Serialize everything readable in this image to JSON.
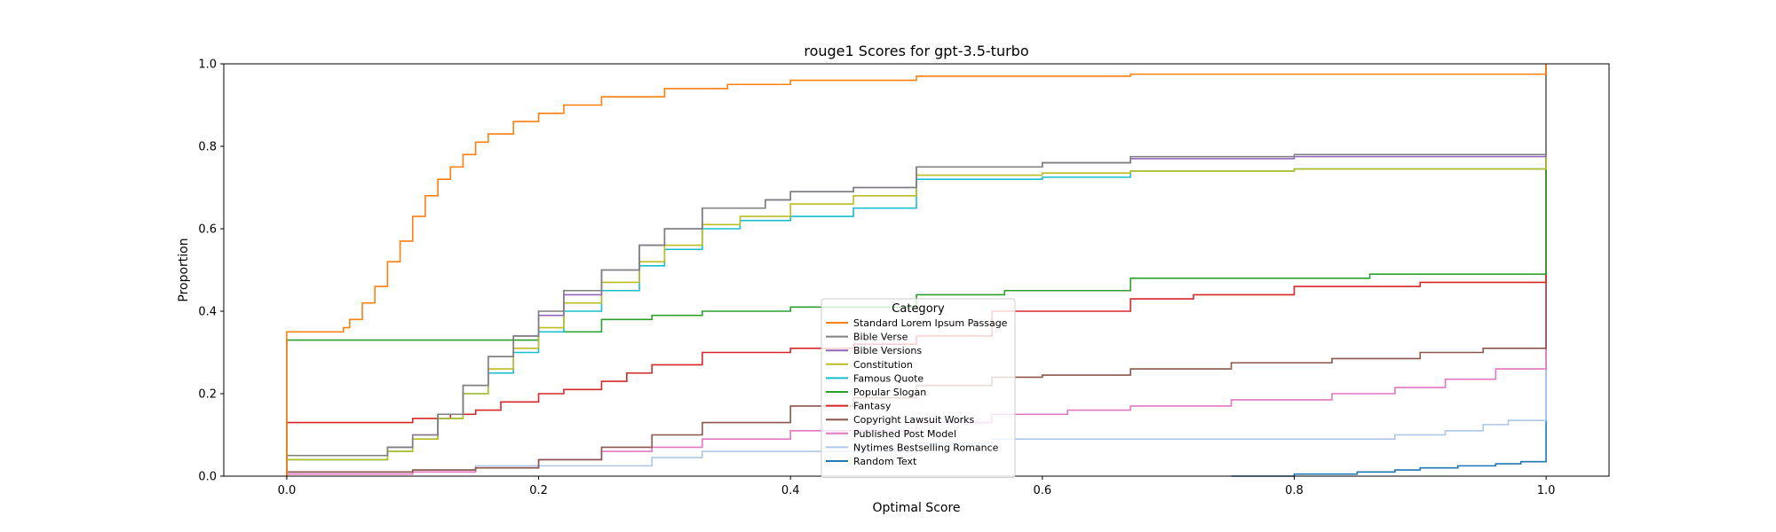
{
  "chart_data": {
    "type": "line",
    "subtype": "step-ecdf",
    "title": "rouge1 Scores for gpt-3.5-turbo",
    "xlabel": "Optimal Score",
    "ylabel": "Proportion",
    "xlim": [
      -0.05,
      1.05
    ],
    "ylim": [
      0,
      1
    ],
    "xticks": [
      0.0,
      0.2,
      0.4,
      0.6,
      0.8,
      1.0
    ],
    "xtick_labels": [
      "0.0",
      "0.2",
      "0.4",
      "0.6",
      "0.8",
      "1.0"
    ],
    "yticks": [
      0.0,
      0.2,
      0.4,
      0.6,
      0.8,
      1.0
    ],
    "ytick_labels": [
      "0.0",
      "0.2",
      "0.4",
      "0.6",
      "0.8",
      "1.0"
    ],
    "grid": false,
    "legend_title": "Category",
    "legend_location": "lower-center",
    "series": [
      {
        "name": "Standard Lorem Ipsum Passage",
        "color": "#ff7f0e",
        "points": [
          [
            0,
            0
          ],
          [
            0,
            0.35
          ],
          [
            0.04,
            0.35
          ],
          [
            0.045,
            0.36
          ],
          [
            0.05,
            0.38
          ],
          [
            0.06,
            0.42
          ],
          [
            0.07,
            0.46
          ],
          [
            0.08,
            0.52
          ],
          [
            0.09,
            0.57
          ],
          [
            0.1,
            0.63
          ],
          [
            0.11,
            0.68
          ],
          [
            0.12,
            0.72
          ],
          [
            0.13,
            0.75
          ],
          [
            0.14,
            0.78
          ],
          [
            0.15,
            0.81
          ],
          [
            0.16,
            0.83
          ],
          [
            0.18,
            0.86
          ],
          [
            0.2,
            0.88
          ],
          [
            0.22,
            0.9
          ],
          [
            0.25,
            0.92
          ],
          [
            0.3,
            0.94
          ],
          [
            0.35,
            0.95
          ],
          [
            0.4,
            0.96
          ],
          [
            0.5,
            0.97
          ],
          [
            0.67,
            0.975
          ],
          [
            1.0,
            0.975
          ],
          [
            1.0,
            1.0
          ]
        ]
      },
      {
        "name": "Bible Verse",
        "color": "#7f7f7f",
        "points": [
          [
            0,
            0
          ],
          [
            0,
            0.05
          ],
          [
            0.05,
            0.05
          ],
          [
            0.08,
            0.07
          ],
          [
            0.1,
            0.1
          ],
          [
            0.12,
            0.15
          ],
          [
            0.14,
            0.22
          ],
          [
            0.16,
            0.29
          ],
          [
            0.18,
            0.34
          ],
          [
            0.2,
            0.4
          ],
          [
            0.22,
            0.45
          ],
          [
            0.25,
            0.5
          ],
          [
            0.28,
            0.56
          ],
          [
            0.3,
            0.6
          ],
          [
            0.33,
            0.65
          ],
          [
            0.38,
            0.67
          ],
          [
            0.4,
            0.69
          ],
          [
            0.45,
            0.7
          ],
          [
            0.5,
            0.71
          ],
          [
            0.5,
            0.75
          ],
          [
            0.6,
            0.76
          ],
          [
            0.67,
            0.775
          ],
          [
            0.8,
            0.78
          ],
          [
            1.0,
            0.78
          ],
          [
            1.0,
            1.0
          ]
        ]
      },
      {
        "name": "Bible Versions",
        "color": "#9467bd",
        "points": [
          [
            0,
            0
          ],
          [
            0,
            0.05
          ],
          [
            0.05,
            0.05
          ],
          [
            0.08,
            0.07
          ],
          [
            0.1,
            0.1
          ],
          [
            0.12,
            0.15
          ],
          [
            0.14,
            0.22
          ],
          [
            0.16,
            0.29
          ],
          [
            0.18,
            0.34
          ],
          [
            0.2,
            0.39
          ],
          [
            0.22,
            0.44
          ],
          [
            0.25,
            0.5
          ],
          [
            0.28,
            0.56
          ],
          [
            0.3,
            0.6
          ],
          [
            0.33,
            0.65
          ],
          [
            0.38,
            0.67
          ],
          [
            0.4,
            0.69
          ],
          [
            0.45,
            0.7
          ],
          [
            0.5,
            0.71
          ],
          [
            0.5,
            0.75
          ],
          [
            0.6,
            0.76
          ],
          [
            0.67,
            0.77
          ],
          [
            0.8,
            0.775
          ],
          [
            1.0,
            0.78
          ],
          [
            1.0,
            1.0
          ]
        ]
      },
      {
        "name": "Constitution",
        "color": "#bcbd22",
        "points": [
          [
            0,
            0
          ],
          [
            0,
            0.04
          ],
          [
            0.05,
            0.04
          ],
          [
            0.08,
            0.06
          ],
          [
            0.1,
            0.09
          ],
          [
            0.12,
            0.14
          ],
          [
            0.14,
            0.2
          ],
          [
            0.16,
            0.26
          ],
          [
            0.18,
            0.31
          ],
          [
            0.2,
            0.36
          ],
          [
            0.22,
            0.42
          ],
          [
            0.25,
            0.47
          ],
          [
            0.28,
            0.52
          ],
          [
            0.3,
            0.56
          ],
          [
            0.33,
            0.61
          ],
          [
            0.36,
            0.63
          ],
          [
            0.4,
            0.66
          ],
          [
            0.45,
            0.68
          ],
          [
            0.5,
            0.69
          ],
          [
            0.5,
            0.73
          ],
          [
            0.6,
            0.735
          ],
          [
            0.67,
            0.74
          ],
          [
            0.8,
            0.745
          ],
          [
            1.0,
            0.75
          ],
          [
            1.0,
            1.0
          ]
        ]
      },
      {
        "name": "Famous Quote",
        "color": "#17becf",
        "points": [
          [
            0,
            0
          ],
          [
            0,
            0.04
          ],
          [
            0.05,
            0.04
          ],
          [
            0.08,
            0.06
          ],
          [
            0.1,
            0.09
          ],
          [
            0.12,
            0.14
          ],
          [
            0.14,
            0.2
          ],
          [
            0.16,
            0.25
          ],
          [
            0.18,
            0.3
          ],
          [
            0.2,
            0.35
          ],
          [
            0.22,
            0.4
          ],
          [
            0.25,
            0.45
          ],
          [
            0.28,
            0.51
          ],
          [
            0.3,
            0.55
          ],
          [
            0.33,
            0.6
          ],
          [
            0.36,
            0.62
          ],
          [
            0.4,
            0.63
          ],
          [
            0.45,
            0.65
          ],
          [
            0.5,
            0.665
          ],
          [
            0.5,
            0.72
          ],
          [
            0.6,
            0.725
          ],
          [
            0.67,
            0.74
          ],
          [
            0.8,
            0.745
          ],
          [
            1.0,
            0.745
          ],
          [
            1.0,
            1.0
          ]
        ]
      },
      {
        "name": "Popular Slogan",
        "color": "#2ca02c",
        "points": [
          [
            0,
            0
          ],
          [
            0,
            0.33
          ],
          [
            0.2,
            0.33
          ],
          [
            0.2,
            0.35
          ],
          [
            0.25,
            0.38
          ],
          [
            0.29,
            0.39
          ],
          [
            0.33,
            0.4
          ],
          [
            0.4,
            0.41
          ],
          [
            0.5,
            0.44
          ],
          [
            0.57,
            0.45
          ],
          [
            0.67,
            0.48
          ],
          [
            0.8,
            0.48
          ],
          [
            0.86,
            0.49
          ],
          [
            1.0,
            0.49
          ],
          [
            1.0,
            1.0
          ]
        ]
      },
      {
        "name": "Fantasy",
        "color": "#d62728",
        "points": [
          [
            0,
            0
          ],
          [
            0,
            0.13
          ],
          [
            0.08,
            0.13
          ],
          [
            0.1,
            0.14
          ],
          [
            0.13,
            0.15
          ],
          [
            0.15,
            0.16
          ],
          [
            0.17,
            0.18
          ],
          [
            0.2,
            0.2
          ],
          [
            0.22,
            0.21
          ],
          [
            0.25,
            0.23
          ],
          [
            0.27,
            0.25
          ],
          [
            0.29,
            0.27
          ],
          [
            0.33,
            0.3
          ],
          [
            0.4,
            0.31
          ],
          [
            0.45,
            0.32
          ],
          [
            0.5,
            0.34
          ],
          [
            0.56,
            0.4
          ],
          [
            0.67,
            0.43
          ],
          [
            0.72,
            0.44
          ],
          [
            0.8,
            0.46
          ],
          [
            0.9,
            0.47
          ],
          [
            1.0,
            0.48
          ],
          [
            1.0,
            1.0
          ]
        ]
      },
      {
        "name": "Copyright Lawsuit Works",
        "color": "#8c564b",
        "points": [
          [
            0,
            0
          ],
          [
            0,
            0.01
          ],
          [
            0.05,
            0.01
          ],
          [
            0.1,
            0.015
          ],
          [
            0.15,
            0.02
          ],
          [
            0.2,
            0.04
          ],
          [
            0.25,
            0.07
          ],
          [
            0.29,
            0.1
          ],
          [
            0.33,
            0.13
          ],
          [
            0.4,
            0.17
          ],
          [
            0.45,
            0.19
          ],
          [
            0.5,
            0.22
          ],
          [
            0.56,
            0.24
          ],
          [
            0.6,
            0.245
          ],
          [
            0.67,
            0.26
          ],
          [
            0.75,
            0.275
          ],
          [
            0.83,
            0.285
          ],
          [
            0.9,
            0.3
          ],
          [
            0.95,
            0.31
          ],
          [
            1.0,
            0.315
          ],
          [
            1.0,
            1.0
          ]
        ]
      },
      {
        "name": "Published Post Model",
        "color": "#e377c2",
        "points": [
          [
            0,
            0
          ],
          [
            0,
            0.005
          ],
          [
            0.05,
            0.005
          ],
          [
            0.1,
            0.01
          ],
          [
            0.15,
            0.02
          ],
          [
            0.2,
            0.04
          ],
          [
            0.25,
            0.06
          ],
          [
            0.29,
            0.07
          ],
          [
            0.33,
            0.09
          ],
          [
            0.4,
            0.11
          ],
          [
            0.5,
            0.13
          ],
          [
            0.56,
            0.15
          ],
          [
            0.62,
            0.16
          ],
          [
            0.67,
            0.17
          ],
          [
            0.75,
            0.185
          ],
          [
            0.83,
            0.2
          ],
          [
            0.88,
            0.215
          ],
          [
            0.92,
            0.235
          ],
          [
            0.96,
            0.26
          ],
          [
            1.0,
            0.27
          ],
          [
            1.0,
            1.0
          ]
        ]
      },
      {
        "name": "Nytimes Bestselling Romance",
        "color": "#aec7e8",
        "points": [
          [
            0,
            0
          ],
          [
            0,
            0.005
          ],
          [
            0.05,
            0.005
          ],
          [
            0.1,
            0.015
          ],
          [
            0.15,
            0.025
          ],
          [
            0.29,
            0.03
          ],
          [
            0.29,
            0.045
          ],
          [
            0.33,
            0.06
          ],
          [
            0.5,
            0.08
          ],
          [
            0.56,
            0.09
          ],
          [
            0.85,
            0.09
          ],
          [
            0.88,
            0.1
          ],
          [
            0.92,
            0.11
          ],
          [
            0.95,
            0.125
          ],
          [
            0.97,
            0.135
          ],
          [
            1.0,
            0.135
          ],
          [
            1.0,
            1.0
          ]
        ]
      },
      {
        "name": "Random Text",
        "color": "#1f77b4",
        "points": [
          [
            0.75,
            0
          ],
          [
            0.8,
            0.005
          ],
          [
            0.85,
            0.01
          ],
          [
            0.88,
            0.015
          ],
          [
            0.9,
            0.02
          ],
          [
            0.93,
            0.025
          ],
          [
            0.96,
            0.03
          ],
          [
            0.98,
            0.035
          ],
          [
            1.0,
            0.035
          ],
          [
            1.0,
            1.0
          ]
        ]
      }
    ]
  }
}
